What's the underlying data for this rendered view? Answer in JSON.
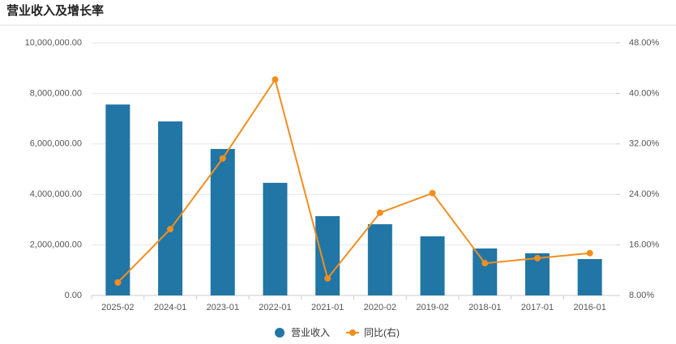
{
  "chart_data": {
    "type": "bar-line",
    "title": "营业收入及增长率",
    "categories": [
      "2025-02",
      "2024-01",
      "2023-01",
      "2022-01",
      "2021-01",
      "2020-02",
      "2019-02",
      "2018-01",
      "2017-01",
      "2016-01"
    ],
    "series": [
      {
        "name": "营业收入",
        "type": "bar",
        "color": "#2176a5",
        "values": [
          7560000,
          6890000,
          5800000,
          4460000,
          3140000,
          2820000,
          2340000,
          1860000,
          1670000,
          1440000
        ]
      },
      {
        "name": "同比(右)",
        "type": "line",
        "axis": "y2",
        "color": "#f28e1f",
        "values": [
          10.05,
          18.5,
          29.7,
          42.2,
          10.7,
          21.1,
          24.2,
          13.1,
          13.9,
          14.7
        ]
      }
    ],
    "ylim": [
      0,
      10000000
    ],
    "yticks": [
      {
        "value": 0,
        "label": "0.00"
      },
      {
        "value": 2000000,
        "label": "2,000,000.00"
      },
      {
        "value": 4000000,
        "label": "4,000,000.00"
      },
      {
        "value": 6000000,
        "label": "6,000,000.00"
      },
      {
        "value": 8000000,
        "label": "8,000,000.00"
      },
      {
        "value": 10000000,
        "label": "10,000,000.00"
      }
    ],
    "y2lim": [
      8,
      48
    ],
    "y2ticks": [
      {
        "value": 8,
        "label": "8.00%"
      },
      {
        "value": 16,
        "label": "16.00%"
      },
      {
        "value": 24,
        "label": "24.00%"
      },
      {
        "value": 32,
        "label": "32.00%"
      },
      {
        "value": 40,
        "label": "40.00%"
      },
      {
        "value": 48,
        "label": "48.00%"
      }
    ],
    "grid": true
  }
}
